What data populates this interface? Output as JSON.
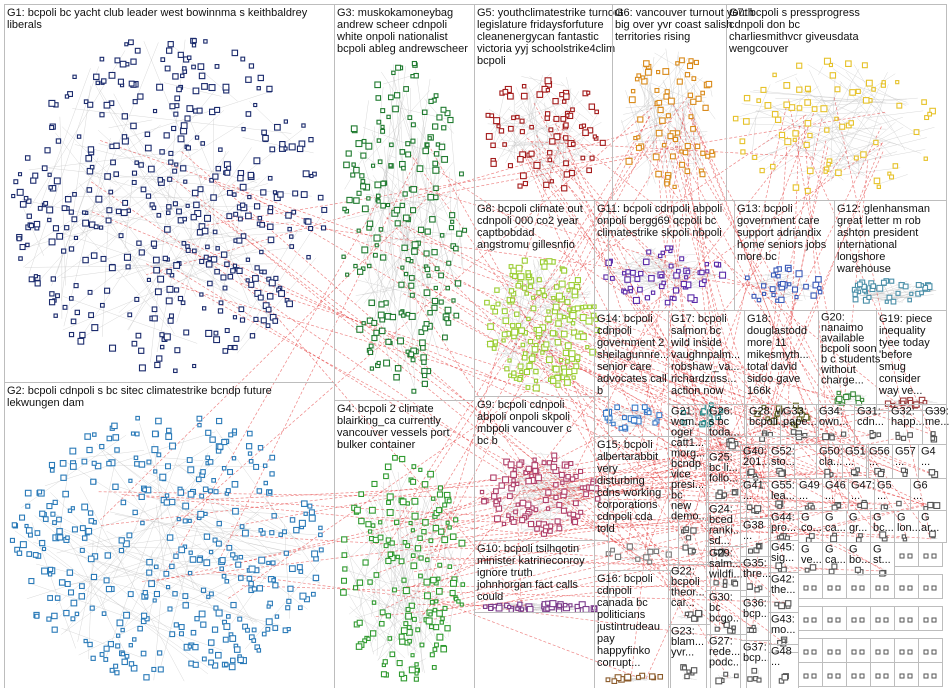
{
  "groups": [
    {
      "id": "G1",
      "lines": [
        "G1: bcpoli bc yacht club leader west bowinnma s keithbaldrey",
        "liberals"
      ],
      "color": "#1a2a6c",
      "nodes": 420
    },
    {
      "id": "G2",
      "lines": [
        "G2: bcpoli cdnpoli s bc sitec climatestrike bcndp future",
        "lekwungen dam"
      ],
      "color": "#2a7ab8",
      "nodes": 380
    },
    {
      "id": "G3",
      "lines": [
        "G3: muskokamoneybag",
        "andrew scheer cdnpoli",
        "white onpoli nationalist",
        "bcpoli ableg andrewscheer"
      ],
      "color": "#1f7a2f",
      "nodes": 210
    },
    {
      "id": "G4",
      "lines": [
        "G4: bcpoli 2 climate",
        "blairking_ca currently",
        "vancouver vessels port",
        "bulker container"
      ],
      "color": "#2f9a2f",
      "nodes": 170
    },
    {
      "id": "G5",
      "lines": [
        "G5: youthclimatestrike turnout",
        "legislature fridaysforfuture",
        "cleanenergycan fantastic",
        "victoria yyj schoolstrike4clim",
        "bcpoli"
      ],
      "color": "#a31a1a",
      "nodes": 80
    },
    {
      "id": "G6",
      "lines": [
        "G6: vancouver turnout youth",
        "big over yvr coast salish",
        "territories rising"
      ],
      "color": "#d98a1a",
      "nodes": 70
    },
    {
      "id": "G7",
      "lines": [
        "G7: bcpoli s pressprogress",
        "cdnpoli don bc",
        "charliesmithvcr giveusdata",
        "wengcouver"
      ],
      "color": "#e6c22a",
      "nodes": 75
    },
    {
      "id": "G8",
      "lines": [
        "G8: bcpoli climate out",
        "cdnpoli 000 co2 year",
        "captbobdad",
        "angstromu gillesnfio"
      ],
      "color": "#9acd32",
      "nodes": 170
    },
    {
      "id": "G9",
      "lines": [
        "G9: bcpoli cdnpoli",
        "abpoli onpoli skpoli",
        "mbpoli vancouver c",
        "bc b"
      ],
      "color": "#b0406a",
      "nodes": 110
    },
    {
      "id": "G10",
      "lines": [
        "G10: bcpoli tsilhqotin",
        "minister katrineconroy",
        "ignore truth",
        "johnhorgan fact calls",
        "could"
      ],
      "color": "#7a3a8a",
      "nodes": 40
    },
    {
      "id": "G11",
      "lines": [
        "G11: bcpoli cdnpoli abpoli",
        "onpoli bergg69 qcpoli bc",
        "climatestrike skpoli nbpoli"
      ],
      "color": "#5a2aa8",
      "nodes": 55
    },
    {
      "id": "G12",
      "lines": [
        "G12: glenhansman",
        "great letter m rob",
        "ashton president",
        "international",
        "longshore",
        "warehouse"
      ],
      "color": "#4a8fa8",
      "nodes": 40
    },
    {
      "id": "G13",
      "lines": [
        "G13: bcpoli",
        "government care",
        "support adriandix",
        "home seniors jobs",
        "more bc"
      ],
      "color": "#3a5ab8",
      "nodes": 30
    },
    {
      "id": "G14",
      "lines": [
        "G14: bcpoli",
        "cdnpoli",
        "government 2",
        "sheilagunnre...",
        "senior care",
        "advocates call",
        "b"
      ],
      "color": "#3a7ac8",
      "nodes": 25
    },
    {
      "id": "G15",
      "lines": [
        "G15: bcpoli",
        "albertarabbit",
        "very",
        "disturbing",
        "cdns working",
        "corporations",
        "cdnpoli cda",
        "told"
      ],
      "color": "#777777",
      "nodes": 10
    },
    {
      "id": "G16",
      "lines": [
        "G16: bcpoli",
        "cdnpoli",
        "canada bc",
        "politicians",
        "justintrudeau",
        "pay",
        "happyfinko",
        "corrupt..."
      ],
      "color": "#8a5a2a",
      "nodes": 12
    },
    {
      "id": "G17",
      "lines": [
        "G17: bcpoli",
        "salmon bc",
        "wild inside",
        "vaughnpalm...",
        "robshaw_va...",
        "richardzuss...",
        "action now"
      ],
      "color": "#2a8a8a",
      "nodes": 15
    },
    {
      "id": "G18",
      "lines": [
        "G18:",
        "douglastodd",
        "more 11",
        "mikesmyth...",
        "total david",
        "sidoo gave",
        "166k"
      ],
      "color": "#6a6a2a",
      "nodes": 15
    },
    {
      "id": "G19",
      "lines": [
        "G19: piece",
        "inequality",
        "tyee today",
        "'before",
        "smug",
        "consider",
        "way ve..."
      ],
      "color": "#9a3a3a",
      "nodes": 12
    },
    {
      "id": "G20",
      "lines": [
        "G20:",
        "nanaimo",
        "available",
        "bcpoli soon",
        "b c students",
        "without",
        "charge..."
      ],
      "color": "#3a8a3a",
      "nodes": 12
    },
    {
      "id": "G21",
      "lines": [
        "G21:",
        "wom...",
        "oger",
        "catt1...",
        "morg...",
        "bcndp",
        "vice",
        "presi...",
        "bc",
        "new",
        "demo..."
      ],
      "color": "#555555",
      "nodes": 8
    },
    {
      "id": "G22",
      "lines": [
        "G22:",
        "bcpoli",
        "theor...",
        "car..."
      ],
      "color": "#555555",
      "nodes": 6
    },
    {
      "id": "G23",
      "lines": [
        "G23:",
        "blam...",
        "yvr..."
      ],
      "color": "#555555",
      "nodes": 6
    },
    {
      "id": "G24",
      "lines": [
        "G24:",
        "bced",
        "ranki...",
        "sd..."
      ],
      "color": "#555555",
      "nodes": 6
    },
    {
      "id": "G25",
      "lines": [
        "G25:",
        "bc li...",
        "follo..."
      ],
      "color": "#555555",
      "nodes": 6
    },
    {
      "id": "G26",
      "lines": [
        "G26:",
        "s bc",
        "toda..."
      ],
      "color": "#555555",
      "nodes": 6
    },
    {
      "id": "G27",
      "lines": [
        "G27:",
        "rede...",
        "podc..."
      ],
      "color": "#555555",
      "nodes": 6
    },
    {
      "id": "G28",
      "lines": [
        "G28: w",
        "bcpoli..."
      ],
      "color": "#555555",
      "nodes": 4
    },
    {
      "id": "G29",
      "lines": [
        "G29:",
        "salm...",
        "wildfi..."
      ],
      "color": "#555555",
      "nodes": 6
    },
    {
      "id": "G30",
      "lines": [
        "G30:",
        "bc",
        "bcgo..."
      ],
      "color": "#555555",
      "nodes": 6
    },
    {
      "id": "G31",
      "lines": [
        "G31:",
        "cdn..."
      ],
      "color": "#555555",
      "nodes": 4
    },
    {
      "id": "G32",
      "lines": [
        "G32:",
        "happ..."
      ],
      "color": "#555555",
      "nodes": 4
    },
    {
      "id": "G33",
      "lines": [
        "G33:",
        "pape..."
      ],
      "color": "#555555",
      "nodes": 4
    },
    {
      "id": "G34",
      "lines": [
        "G34:",
        "own..."
      ],
      "color": "#555555",
      "nodes": 4
    },
    {
      "id": "G35",
      "lines": [
        "G35:",
        "thre..."
      ],
      "color": "#555555",
      "nodes": 4
    },
    {
      "id": "G36",
      "lines": [
        "G36:",
        "bcp..."
      ],
      "color": "#555555",
      "nodes": 4
    },
    {
      "id": "G37",
      "lines": [
        "G37:",
        "bcp..."
      ],
      "color": "#555555",
      "nodes": 4
    },
    {
      "id": "G38",
      "lines": [
        "G38",
        "..."
      ],
      "color": "#555555",
      "nodes": 4
    },
    {
      "id": "G39",
      "lines": [
        "G39:",
        "me..."
      ],
      "color": "#555555",
      "nodes": 4
    },
    {
      "id": "G40",
      "lines": [
        "G40:",
        "201..."
      ],
      "color": "#555555",
      "nodes": 4
    },
    {
      "id": "G41",
      "lines": [
        "G41",
        "..."
      ],
      "color": "#555555",
      "nodes": 4
    },
    {
      "id": "G42",
      "lines": [
        "G42:",
        "the..."
      ],
      "color": "#555555",
      "nodes": 4
    },
    {
      "id": "G43",
      "lines": [
        "G43:",
        "mo..."
      ],
      "color": "#555555",
      "nodes": 4
    },
    {
      "id": "G44",
      "lines": [
        "G44:",
        "pro..."
      ],
      "color": "#555555",
      "nodes": 4
    },
    {
      "id": "G45",
      "lines": [
        "G45:",
        "sig..."
      ],
      "color": "#555555",
      "nodes": 4
    },
    {
      "id": "G46",
      "lines": [
        "G46",
        "..."
      ],
      "color": "#555555",
      "nodes": 3
    },
    {
      "id": "G47",
      "lines": [
        "G47:",
        "..."
      ],
      "color": "#555555",
      "nodes": 3
    },
    {
      "id": "G48",
      "lines": [
        "G48",
        "..."
      ],
      "color": "#555555",
      "nodes": 3
    },
    {
      "id": "G49",
      "lines": [
        "G49",
        "..."
      ],
      "color": "#555555",
      "nodes": 3
    },
    {
      "id": "G50",
      "lines": [
        "G50:",
        "cla..."
      ],
      "color": "#555555",
      "nodes": 3
    },
    {
      "id": "G51",
      "lines": [
        "G51",
        "..."
      ],
      "color": "#555555",
      "nodes": 3
    },
    {
      "id": "G52",
      "lines": [
        "G52:",
        "sto..."
      ],
      "color": "#555555",
      "nodes": 3
    },
    {
      "id": "G55",
      "lines": [
        "G55:",
        "lea..."
      ],
      "color": "#555555",
      "nodes": 3
    },
    {
      "id": "G56",
      "lines": [
        "G56",
        "..."
      ],
      "color": "#555555",
      "nodes": 3
    },
    {
      "id": "G57",
      "lines": [
        "G57",
        "..."
      ],
      "color": "#555555",
      "nodes": 3
    },
    {
      "id": "G4x",
      "lines": [
        "G4",
        "..."
      ],
      "color": "#555555",
      "nodes": 3
    },
    {
      "id": "G5x",
      "lines": [
        "G5",
        "..."
      ],
      "color": "#555555",
      "nodes": 3
    },
    {
      "id": "G6x",
      "lines": [
        "G6",
        "..."
      ],
      "color": "#555555",
      "nodes": 3
    },
    {
      "id": "Gsm1",
      "lines": [
        "G",
        "co..."
      ],
      "color": "#555555",
      "nodes": 2
    },
    {
      "id": "Gsm2",
      "lines": [
        "G",
        "ca..."
      ],
      "color": "#555555",
      "nodes": 2
    },
    {
      "id": "Gsm3",
      "lines": [
        "G",
        "gr..."
      ],
      "color": "#555555",
      "nodes": 2
    },
    {
      "id": "Gsm4",
      "lines": [
        "G",
        "bc..."
      ],
      "color": "#555555",
      "nodes": 2
    },
    {
      "id": "Gsm5",
      "lines": [
        "G",
        "lon..."
      ],
      "color": "#555555",
      "nodes": 2
    },
    {
      "id": "Gsm6",
      "lines": [
        "G",
        "ar..."
      ],
      "color": "#555555",
      "nodes": 2
    },
    {
      "id": "Gsm7",
      "lines": [
        "G",
        "ve..."
      ],
      "color": "#555555",
      "nodes": 2
    },
    {
      "id": "Gsm8",
      "lines": [
        "G",
        "ca..."
      ],
      "color": "#555555",
      "nodes": 2
    },
    {
      "id": "Gsm9",
      "lines": [
        "G",
        "bo..."
      ],
      "color": "#555555",
      "nodes": 2
    },
    {
      "id": "Gsm10",
      "lines": [
        "G",
        "st..."
      ],
      "color": "#555555",
      "nodes": 2
    }
  ],
  "edge_colors": {
    "inter_group": "#e02020",
    "intra_group": "#bfbfbf"
  }
}
